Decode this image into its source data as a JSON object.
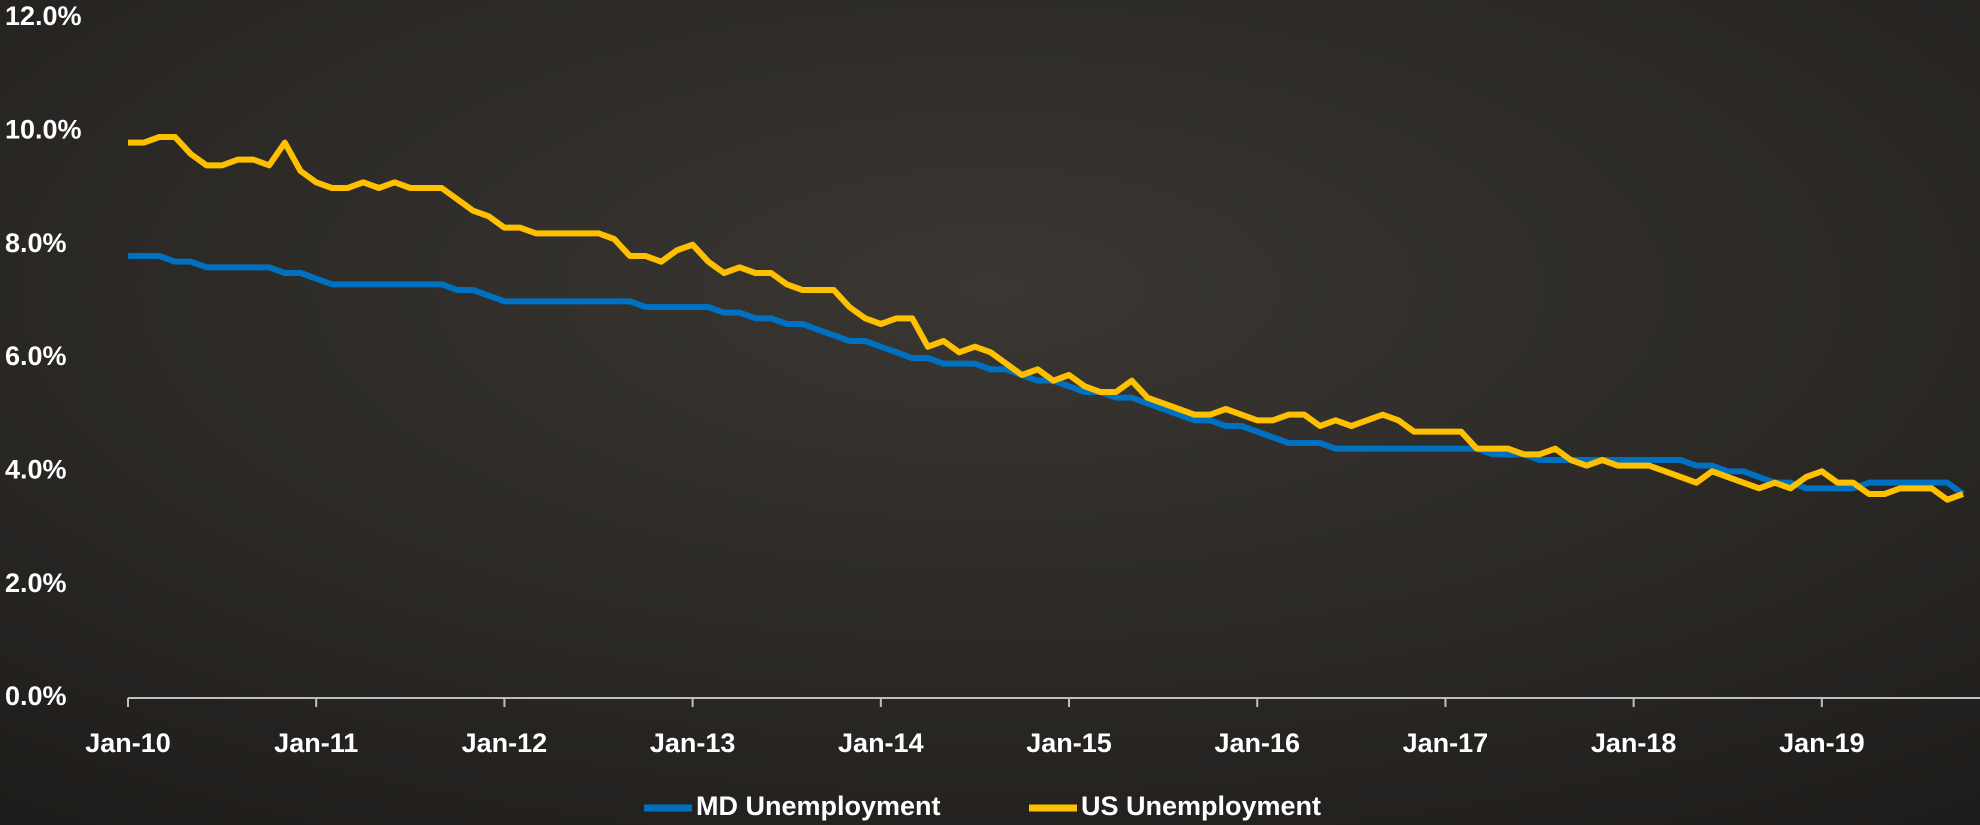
{
  "chart_data": {
    "type": "line",
    "categories": [
      "Jan-10",
      null,
      null,
      null,
      null,
      null,
      null,
      null,
      null,
      null,
      null,
      null,
      "Jan-11",
      null,
      null,
      null,
      null,
      null,
      null,
      null,
      null,
      null,
      null,
      null,
      "Jan-12",
      null,
      null,
      null,
      null,
      null,
      null,
      null,
      null,
      null,
      null,
      null,
      "Jan-13",
      null,
      null,
      null,
      null,
      null,
      null,
      null,
      null,
      null,
      null,
      null,
      "Jan-14",
      null,
      null,
      null,
      null,
      null,
      null,
      null,
      null,
      null,
      null,
      null,
      "Jan-15",
      null,
      null,
      null,
      null,
      null,
      null,
      null,
      null,
      null,
      null,
      null,
      "Jan-16",
      null,
      null,
      null,
      null,
      null,
      null,
      null,
      null,
      null,
      null,
      null,
      "Jan-17",
      null,
      null,
      null,
      null,
      null,
      null,
      null,
      null,
      null,
      null,
      null,
      "Jan-18",
      null,
      null,
      null,
      null,
      null,
      null,
      null,
      null,
      null,
      null,
      null,
      "Jan-19",
      null,
      null,
      null,
      null,
      null,
      null,
      null,
      null,
      null
    ],
    "series": [
      {
        "name": "MD Unemployment",
        "color": "#0070c0",
        "values": [
          7.8,
          7.8,
          7.8,
          7.7,
          7.7,
          7.6,
          7.6,
          7.6,
          7.6,
          7.6,
          7.5,
          7.5,
          7.4,
          7.3,
          7.3,
          7.3,
          7.3,
          7.3,
          7.3,
          7.3,
          7.3,
          7.2,
          7.2,
          7.1,
          7.0,
          7.0,
          7.0,
          7.0,
          7.0,
          7.0,
          7.0,
          7.0,
          7.0,
          6.9,
          6.9,
          6.9,
          6.9,
          6.9,
          6.8,
          6.8,
          6.7,
          6.7,
          6.6,
          6.6,
          6.5,
          6.4,
          6.3,
          6.3,
          6.2,
          6.1,
          6.0,
          6.0,
          5.9,
          5.9,
          5.9,
          5.8,
          5.8,
          5.7,
          5.6,
          5.6,
          5.5,
          5.4,
          5.4,
          5.3,
          5.3,
          5.2,
          5.1,
          5.0,
          4.9,
          4.9,
          4.8,
          4.8,
          4.7,
          4.6,
          4.5,
          4.5,
          4.5,
          4.4,
          4.4,
          4.4,
          4.4,
          4.4,
          4.4,
          4.4,
          4.4,
          4.4,
          4.4,
          4.3,
          4.3,
          4.3,
          4.2,
          4.2,
          4.2,
          4.2,
          4.2,
          4.2,
          4.2,
          4.2,
          4.2,
          4.2,
          4.1,
          4.1,
          4.0,
          4.0,
          3.9,
          3.8,
          3.8,
          3.7,
          3.7,
          3.7,
          3.7,
          3.8,
          3.8,
          3.8,
          3.8,
          3.8,
          3.8,
          3.6
        ]
      },
      {
        "name": "US Unemployment",
        "color": "#ffc000",
        "values": [
          9.8,
          9.8,
          9.9,
          9.9,
          9.6,
          9.4,
          9.4,
          9.5,
          9.5,
          9.4,
          9.8,
          9.3,
          9.1,
          9.0,
          9.0,
          9.1,
          9.0,
          9.1,
          9.0,
          9.0,
          9.0,
          8.8,
          8.6,
          8.5,
          8.3,
          8.3,
          8.2,
          8.2,
          8.2,
          8.2,
          8.2,
          8.1,
          7.8,
          7.8,
          7.7,
          7.9,
          8.0,
          7.7,
          7.5,
          7.6,
          7.5,
          7.5,
          7.3,
          7.2,
          7.2,
          7.2,
          6.9,
          6.7,
          6.6,
          6.7,
          6.7,
          6.2,
          6.3,
          6.1,
          6.2,
          6.1,
          5.9,
          5.7,
          5.8,
          5.6,
          5.7,
          5.5,
          5.4,
          5.4,
          5.6,
          5.3,
          5.2,
          5.1,
          5.0,
          5.0,
          5.1,
          5.0,
          4.9,
          4.9,
          5.0,
          5.0,
          4.8,
          4.9,
          4.8,
          4.9,
          5.0,
          4.9,
          4.7,
          4.7,
          4.7,
          4.7,
          4.4,
          4.4,
          4.4,
          4.3,
          4.3,
          4.4,
          4.2,
          4.1,
          4.2,
          4.1,
          4.1,
          4.1,
          4.0,
          3.9,
          3.8,
          4.0,
          3.9,
          3.8,
          3.7,
          3.8,
          3.7,
          3.9,
          4.0,
          3.8,
          3.8,
          3.6,
          3.6,
          3.7,
          3.7,
          3.7,
          3.5,
          3.6
        ]
      }
    ],
    "ylim": [
      0,
      12
    ],
    "yticks": [
      {
        "value": 0,
        "label": "0.0%"
      },
      {
        "value": 2,
        "label": "2.0%"
      },
      {
        "value": 4,
        "label": "4.0%"
      },
      {
        "value": 6,
        "label": "6.0%"
      },
      {
        "value": 8,
        "label": "8.0%"
      },
      {
        "value": 10,
        "label": "10.0%"
      },
      {
        "value": 12,
        "label": "12.0%"
      }
    ],
    "grid": false,
    "legend": "bottom"
  }
}
